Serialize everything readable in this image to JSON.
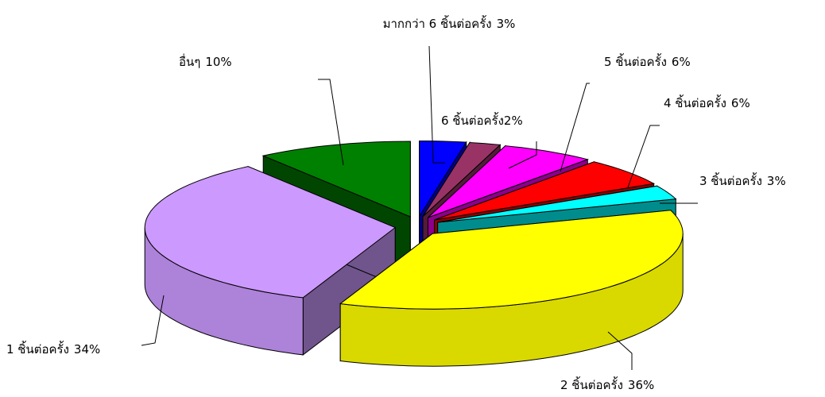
{
  "chart_data": {
    "type": "pie",
    "categories": [
      "มากกว่า 6 ชิ้นต่อครั้ง",
      "6 ชิ้นต่อครั้ง",
      "5 ชิ้นต่อครั้ง",
      "4 ชิ้นต่อครั้ง",
      "3 ชิ้นต่อครั้ง",
      "2 ชิ้นต่อครั้ง",
      "1 ชิ้นต่อครั้ง",
      "อื่นๆ"
    ],
    "values": [
      3,
      2,
      6,
      6,
      3,
      36,
      34,
      10
    ],
    "value_labels": [
      "3%",
      "2%",
      "6%",
      "6%",
      "3%",
      "36%",
      "34%",
      "10%"
    ],
    "colors": [
      "#0000ff",
      "#993366",
      "#ff00ff",
      "#ff0000",
      "#00ffff",
      "#ffff00",
      "#cc99ff",
      "#008000"
    ]
  }
}
